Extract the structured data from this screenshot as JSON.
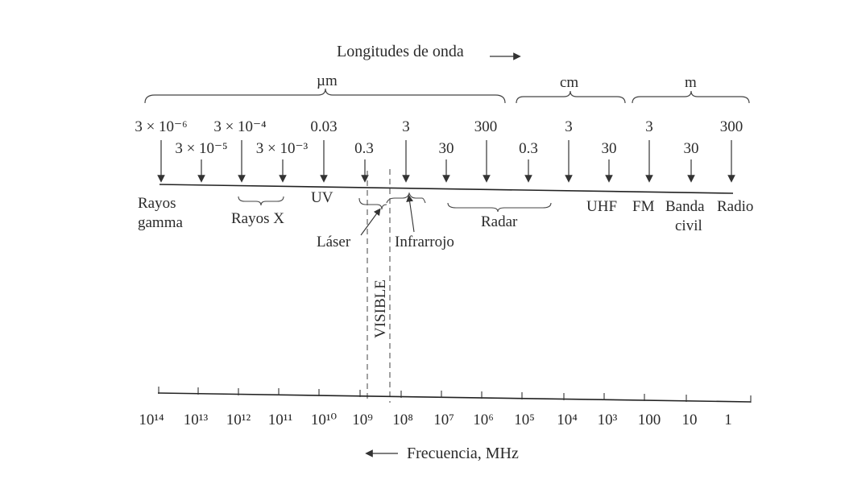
{
  "diagram": {
    "wavelength_title": "Longitudes de onda",
    "frequency_title": "Frecuencia, MHz",
    "unit_um": "µm",
    "unit_cm": "cm",
    "unit_m": "m",
    "wavelength_top": [
      "3 × 10⁻⁶",
      "3 × 10⁻⁴",
      "0.03",
      "3",
      "300",
      "3",
      "3",
      "300"
    ],
    "wavelength_bottom": [
      "3 × 10⁻⁵",
      "3 × 10⁻³",
      "0.3",
      "30",
      "0.3",
      "30",
      "30"
    ],
    "bands": {
      "gamma_1": "Rayos",
      "gamma_2": "gamma",
      "xray": "Rayos X",
      "uv": "UV",
      "laser": "Láser",
      "infrared": "Infrarrojo",
      "radar": "Radar",
      "uhf": "UHF",
      "fm": "FM",
      "cb_1": "Banda",
      "cb_2": "civil",
      "radio": "Radio",
      "visible": "VISIBLE"
    },
    "frequency_ticks": [
      "10¹⁴",
      "10¹³",
      "10¹²",
      "10¹¹",
      "10¹⁰",
      "10⁹",
      "10⁸",
      "10⁷",
      "10⁶",
      "10⁵",
      "10⁴",
      "10³",
      "100",
      "10",
      "1"
    ]
  }
}
